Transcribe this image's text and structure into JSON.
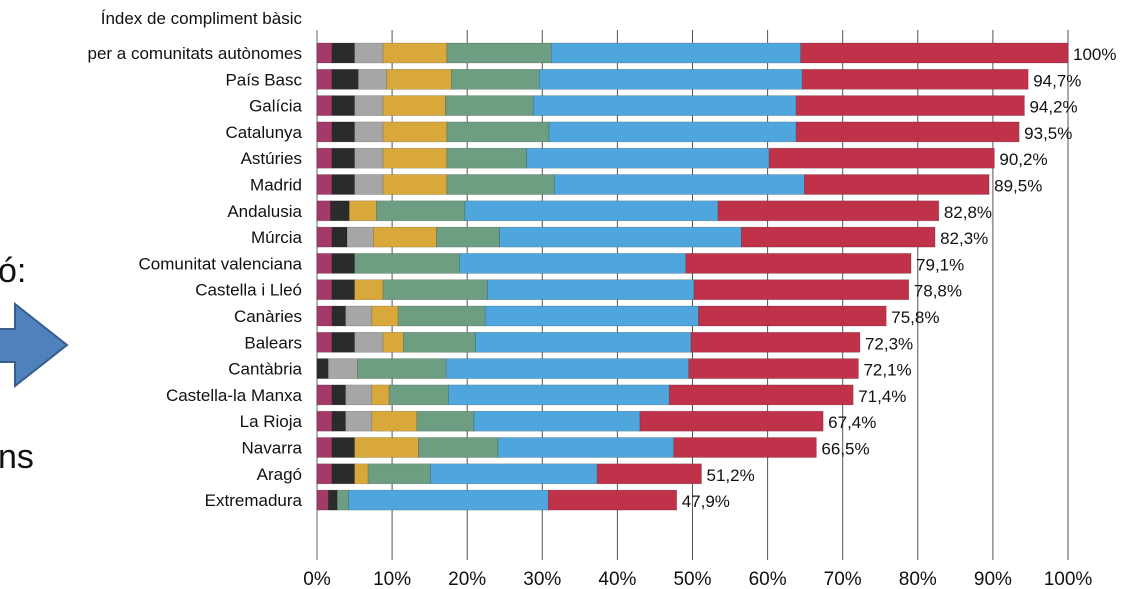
{
  "left_fragments": {
    "top": "ó:",
    "bottom": "ns"
  },
  "chart_data": {
    "type": "bar",
    "stacked": true,
    "orientation": "horizontal",
    "title": "Índex de compliment bàsic per a comunitats autònomes",
    "title_lines": [
      "Índex de compliment bàsic",
      "per a comunitats autònomes"
    ],
    "categories": [
      "per a comunitats autònomes",
      "País Basc",
      "Galícia",
      "Catalunya",
      "Astúries",
      "Madrid",
      "Andalusia",
      "Múrcia",
      "Comunitat valenciana",
      "Castella i Lleó",
      "Canàries",
      "Balears",
      "Cantàbria",
      "Castella-la Manxa",
      "La Rioja",
      "Navarra",
      "Aragó",
      "Extremadura"
    ],
    "totals": [
      100,
      94.7,
      94.2,
      93.5,
      90.2,
      89.5,
      82.8,
      82.3,
      79.1,
      78.8,
      75.8,
      72.3,
      72.1,
      71.4,
      67.4,
      66.5,
      51.2,
      47.9
    ],
    "total_labels": [
      "100%",
      "94,7%",
      "94,2%",
      "93,5%",
      "90,2%",
      "89,5%",
      "82,8%",
      "82,3%",
      "79,1%",
      "78,8%",
      "75,8%",
      "72,3%",
      "72,1%",
      "71,4%",
      "67,4%",
      "66,5%",
      "51,2%",
      "47,9%"
    ],
    "series_colors": [
      "#a33a6a",
      "#2b2b2b",
      "#a6a6a6",
      "#d9a83a",
      "#6e9e82",
      "#4ea6dc",
      "#c0314a"
    ],
    "segments": [
      [
        2,
        3,
        3.8,
        8.5,
        13.9,
        33.2,
        35.6
      ],
      [
        2,
        3.5,
        3.8,
        8.6,
        11.7,
        35,
        30.1
      ],
      [
        2,
        3,
        3.8,
        8.3,
        11.7,
        35,
        30.4
      ],
      [
        2,
        3,
        3.8,
        8.5,
        13.6,
        32.9,
        29.7
      ],
      [
        2,
        3,
        3.8,
        8.5,
        10.6,
        32.3,
        30
      ],
      [
        2,
        3,
        3.8,
        8.5,
        14.3,
        33.3,
        24.6
      ],
      [
        1.8,
        2.5,
        0,
        3.6,
        11.8,
        33.7,
        29.4
      ],
      [
        2,
        2,
        3.5,
        8.4,
        8.4,
        32.2,
        25.8
      ],
      [
        2,
        3,
        0,
        0,
        14,
        30.1,
        30
      ],
      [
        2,
        3,
        0,
        3.8,
        13.9,
        27.5,
        28.6
      ],
      [
        2,
        1.8,
        3.5,
        3.5,
        11.6,
        28.4,
        25
      ],
      [
        2,
        3,
        3.8,
        2.7,
        9.6,
        28.7,
        22.5
      ],
      [
        0,
        1.5,
        3.9,
        0,
        11.8,
        32.3,
        22.6
      ],
      [
        2,
        1.8,
        3.5,
        2.3,
        7.9,
        29.4,
        24.5
      ],
      [
        2,
        1.8,
        3.5,
        6,
        7.6,
        22.1,
        24.4
      ],
      [
        2,
        3,
        0,
        8.5,
        10.6,
        23.4,
        19
      ],
      [
        2,
        3,
        0,
        1.8,
        8.3,
        22.2,
        13.9
      ],
      [
        1.5,
        1.2,
        0,
        0,
        1.5,
        26.6,
        17.1
      ]
    ],
    "x_ticks": [
      "0%",
      "10%",
      "20%",
      "30%",
      "40%",
      "50%",
      "60%",
      "70%",
      "80%",
      "90%",
      "100%"
    ],
    "xlim": [
      0,
      100
    ],
    "grid": true,
    "legend": "none"
  }
}
